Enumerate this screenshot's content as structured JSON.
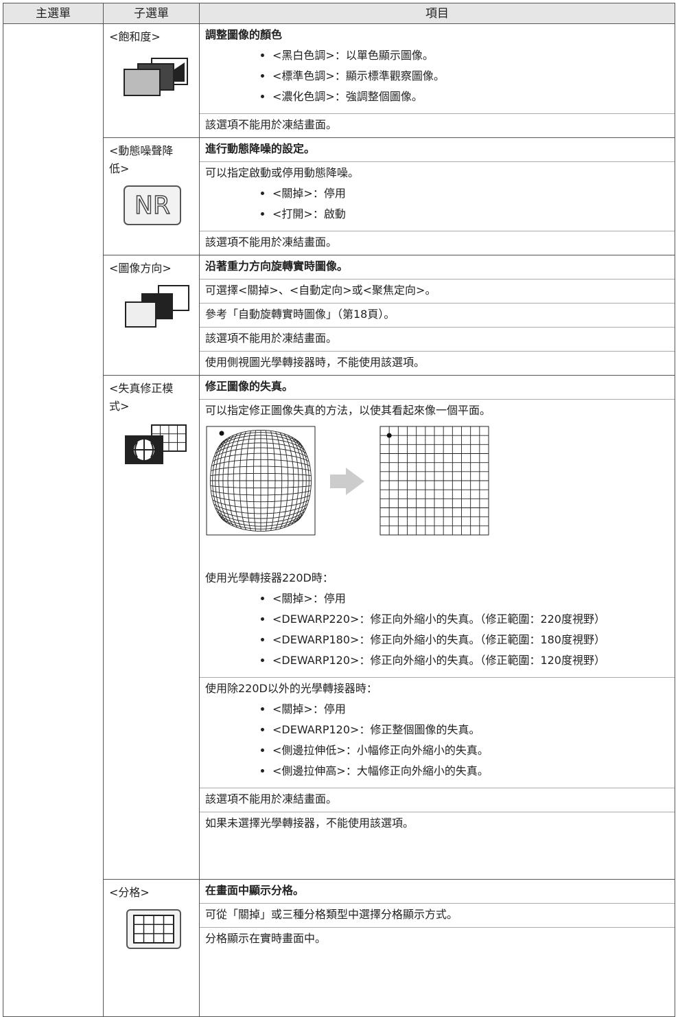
{
  "table": {
    "headers": [
      "主選單",
      "子選單",
      "項目"
    ],
    "rows": [
      {
        "submenu": "<飽和度>",
        "sections": [
          {
            "text": "調整圖像的顏色",
            "bullets": [
              "<黑白色調>：以單色顯示圖像。",
              "<標準色調>：顯示標準觀察圖像。",
              "<濃化色調>：強調整個圖像。"
            ]
          },
          {
            "text": "該選項不能用於凍結畫面。"
          }
        ]
      },
      {
        "submenu": "<動態噪聲降低>",
        "icon_text": "NR",
        "sections": [
          {
            "text": "進行動態降噪的設定。"
          },
          {
            "text": "可以指定啟動或停用動態降噪。",
            "bullets": [
              "<關掉>：停用",
              "<打開>：啟動"
            ]
          },
          {
            "text": "該選項不能用於凍結畫面。"
          }
        ]
      },
      {
        "submenu": "<圖像方向>",
        "sections": [
          {
            "text": "沿著重力方向旋轉實時圖像。"
          },
          {
            "text": "可選擇<關掉>、<自動定向>或<聚焦定向>。"
          },
          {
            "text": "參考「自動旋轉實時圖像」（第18頁）。"
          },
          {
            "text": "該選項不能用於凍結畫面。"
          },
          {
            "text": "使用側視圖光學轉接器時，不能使用該選項。"
          }
        ]
      },
      {
        "submenu": "<失真修正模式>",
        "sections": [
          {
            "text": "修正圖像的失真。"
          },
          {
            "text": "可以指定修正圖像失真的方法，以使其看起來像一個平面。",
            "note": "使用光學轉接器220D時：",
            "bullets": [
              "<關掉>：停用",
              "<DEWARP220>：修正向外縮小的失真。（修正範圍：220度視野）",
              "<DEWARP180>：修正向外縮小的失真。（修正範圍：180度視野）",
              "<DEWARP120>：修正向外縮小的失真。（修正範圍：120度視野）"
            ]
          },
          {
            "text": "使用除220D以外的光學轉接器時：",
            "bullets": [
              "<關掉>：停用",
              "<DEWARP120>：修正整個圖像的失真。",
              "<側邊拉伸低>：小幅修正向外縮小的失真。",
              "<側邊拉伸高>：大幅修正向外縮小的失真。"
            ]
          },
          {
            "text": "該選項不能用於凍結畫面。"
          },
          {
            "text": "如果未選擇光學轉接器，不能使用該選項。"
          }
        ]
      },
      {
        "submenu": "<分格>",
        "sections": [
          {
            "text": "在畫面中顯示分格。"
          },
          {
            "text": "可從「關掉」或三種分格類型中選擇分格顯示方式。"
          },
          {
            "text": "分格顯示在實時畫面中。"
          }
        ]
      }
    ]
  }
}
